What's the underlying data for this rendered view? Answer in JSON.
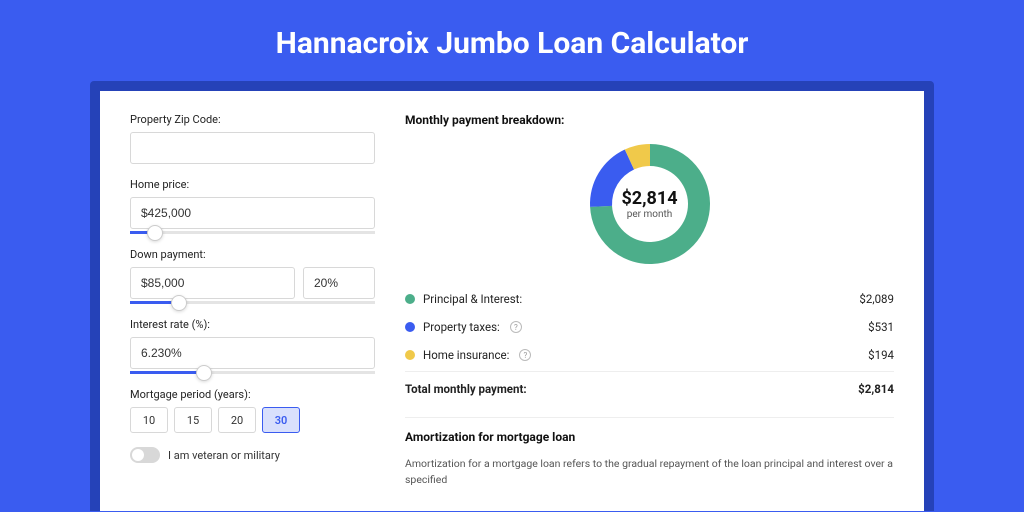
{
  "title": "Hannacroix Jumbo Loan Calculator",
  "colors": {
    "page_bg": "#3a5cf0",
    "card_wrap_bg": "#2542b8",
    "card_bg": "#ffffff",
    "accent": "#3a5cf0",
    "text": "#222222"
  },
  "form": {
    "zip": {
      "label": "Property Zip Code:",
      "value": ""
    },
    "home_price": {
      "label": "Home price:",
      "value": "$425,000",
      "slider_pct": 10
    },
    "down_payment": {
      "label": "Down payment:",
      "value": "$85,000",
      "pct_value": "20%",
      "slider_pct": 20
    },
    "interest_rate": {
      "label": "Interest rate (%):",
      "value": "6.230%",
      "slider_pct": 30
    },
    "mortgage_period": {
      "label": "Mortgage period (years):",
      "options": [
        "10",
        "15",
        "20",
        "30"
      ],
      "selected": "30"
    },
    "veteran": {
      "label": "I am veteran or military",
      "on": false
    }
  },
  "breakdown": {
    "heading": "Monthly payment breakdown:",
    "center_amount": "$2,814",
    "center_sub": "per month",
    "donut": {
      "type": "donut",
      "size": 130,
      "thickness": 22,
      "background": "#ffffff",
      "slices": [
        {
          "label": "Principal & Interest:",
          "value_text": "$2,089",
          "value": 2089,
          "color": "#4cae8a"
        },
        {
          "label": "Property taxes:",
          "value_text": "$531",
          "value": 531,
          "color": "#3a5cf0",
          "info": true
        },
        {
          "label": "Home insurance:",
          "value_text": "$194",
          "value": 194,
          "color": "#f0c94a",
          "info": true
        }
      ]
    },
    "total_label": "Total monthly payment:",
    "total_value": "$2,814"
  },
  "amortization": {
    "heading": "Amortization for mortgage loan",
    "text": "Amortization for a mortgage loan refers to the gradual repayment of the loan principal and interest over a specified"
  }
}
